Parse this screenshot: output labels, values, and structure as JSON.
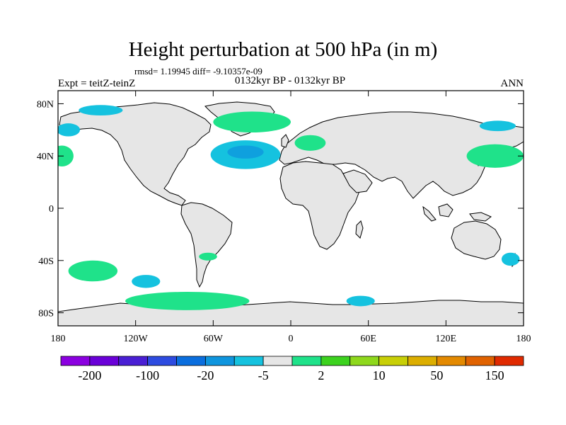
{
  "figure": {
    "title": "Height perturbation at 500 hPa (in m)",
    "stats": "rmsd= 1.19945 diff= -9.10357e-09",
    "experiment": "Expt = teitZ-teinZ",
    "period": "0132kyr BP - 0132kyr BP",
    "season": "ANN"
  },
  "map": {
    "projection": "cylindrical-equidistant",
    "lon_range": [
      -180,
      180
    ],
    "lat_range": [
      -90,
      90
    ],
    "land_fill": "#e6e6e6",
    "coastline_color": "#000000",
    "lat_ticks": [
      {
        "value": 80,
        "label": "80N"
      },
      {
        "value": 40,
        "label": "40N"
      },
      {
        "value": 0,
        "label": "0"
      },
      {
        "value": -40,
        "label": "40S"
      },
      {
        "value": -80,
        "label": "80S"
      }
    ],
    "lon_ticks": [
      {
        "value": -180,
        "label": "180"
      },
      {
        "value": -120,
        "label": "120W"
      },
      {
        "value": -60,
        "label": "60W"
      },
      {
        "value": 0,
        "label": "0"
      },
      {
        "value": 60,
        "label": "60E"
      },
      {
        "value": 120,
        "label": "120E"
      },
      {
        "value": 180,
        "label": "180"
      }
    ],
    "anomalies": [
      {
        "lon": -147,
        "lat": 75,
        "rx": 17,
        "ry": 4,
        "class": "-5 to -2",
        "color": "#15c2df"
      },
      {
        "lon": -172,
        "lat": 60,
        "rx": 9,
        "ry": 5,
        "class": "-5 to -2",
        "color": "#15c2df"
      },
      {
        "lon": 160,
        "lat": 63,
        "rx": 14,
        "ry": 4,
        "class": "-5 to -2",
        "color": "#15c2df"
      },
      {
        "lon": -30,
        "lat": 66,
        "rx": 30,
        "ry": 8,
        "class": "2 to 5",
        "color": "#1fe28a"
      },
      {
        "lon": 15,
        "lat": 50,
        "rx": 12,
        "ry": 6,
        "class": "2 to 5",
        "color": "#1fe28a"
      },
      {
        "lon": -35,
        "lat": 41,
        "rx": 27,
        "ry": 11,
        "class": "-5 to -2",
        "color": "#15c2df"
      },
      {
        "lon": -35,
        "lat": 43,
        "rx": 14,
        "ry": 5,
        "class": "-20 to -5",
        "color": "#0fa0de"
      },
      {
        "lon": 158,
        "lat": 40,
        "rx": 22,
        "ry": 9,
        "class": "2 to 5",
        "color": "#1fe28a"
      },
      {
        "lon": -177,
        "lat": 40,
        "rx": 9,
        "ry": 8,
        "class": "2 to 5",
        "color": "#1fe28a"
      },
      {
        "lon": -64,
        "lat": -37,
        "rx": 7,
        "ry": 3,
        "class": "2 to 5",
        "color": "#1fe28a"
      },
      {
        "lon": -153,
        "lat": -48,
        "rx": 19,
        "ry": 8,
        "class": "2 to 5",
        "color": "#1fe28a"
      },
      {
        "lon": -112,
        "lat": -56,
        "rx": 11,
        "ry": 5,
        "class": "-5 to -2",
        "color": "#15c2df"
      },
      {
        "lon": -80,
        "lat": -71,
        "rx": 48,
        "ry": 7,
        "class": "2 to 5",
        "color": "#1fe28a"
      },
      {
        "lon": 54,
        "lat": -71,
        "rx": 11,
        "ry": 4,
        "class": "-5 to -2",
        "color": "#15c2df"
      },
      {
        "lon": 170,
        "lat": -39,
        "rx": 7,
        "ry": 5,
        "class": "-5 to -2",
        "color": "#15c2df"
      }
    ]
  },
  "colorbar": {
    "colors": [
      "#8b00e0",
      "#6a00d8",
      "#4a1fd4",
      "#2d4be0",
      "#0a6ede",
      "#0f95de",
      "#15c2df",
      "#e6e6e6",
      "#1fe28a",
      "#3cd21e",
      "#8ed81c",
      "#c8cf06",
      "#dcae00",
      "#e38900",
      "#e06200",
      "#e02a00"
    ],
    "labels": [
      "-200",
      "-100",
      "-20",
      "-5",
      "2",
      "10",
      "50",
      "150"
    ]
  }
}
